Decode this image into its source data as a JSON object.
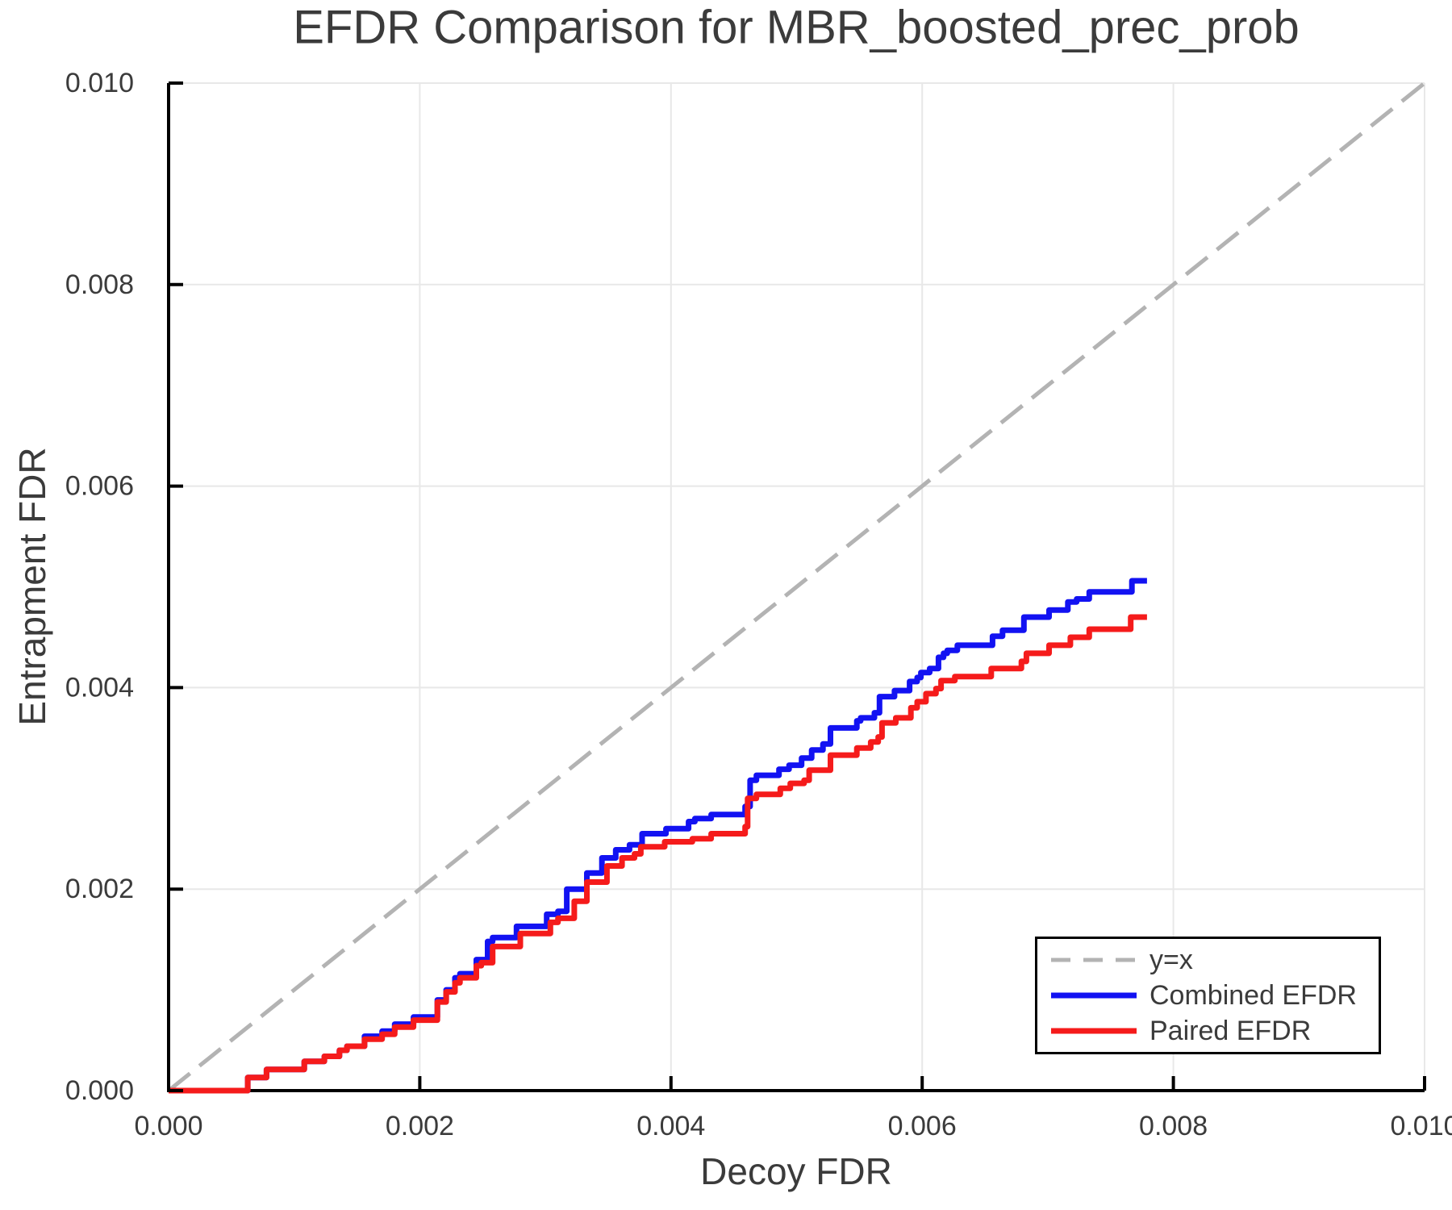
{
  "chart": {
    "title": "EFDR Comparison for MBR_boosted_prec_prob",
    "xlabel": "Decoy FDR",
    "ylabel": "Entrapment FDR"
  },
  "chart_data": {
    "type": "line",
    "title": "EFDR Comparison for MBR_boosted_prec_prob",
    "xlabel": "Decoy FDR",
    "ylabel": "Entrapment FDR",
    "xlim": [
      0.0,
      0.01
    ],
    "ylim": [
      0.0,
      0.01
    ],
    "grid": true,
    "legend_position": "lower right",
    "x_ticks": {
      "values": [
        0.0,
        0.002,
        0.004,
        0.006,
        0.008,
        0.01
      ],
      "labels": [
        "0.000",
        "0.002",
        "0.004",
        "0.006",
        "0.008",
        "0.010"
      ]
    },
    "y_ticks": {
      "values": [
        0.0,
        0.002,
        0.004,
        0.006,
        0.008,
        0.01
      ],
      "labels": [
        "0.000",
        "0.002",
        "0.004",
        "0.006",
        "0.008",
        "0.010"
      ]
    },
    "colors": {
      "grid": "#e8e8e8",
      "spine": "#000000",
      "text": "#3b3b3b",
      "reference": "#b3b3b3",
      "combined": "#1212f2",
      "paired": "#f51b1b"
    },
    "legend": [
      {
        "label": "y=x"
      },
      {
        "label": "Combined EFDR"
      },
      {
        "label": "Paired EFDR"
      }
    ],
    "series": [
      {
        "name": "y=x",
        "color": "#b3b3b3",
        "width": 5,
        "dash": "34 15",
        "step": false,
        "points": [
          [
            0.0,
            0.0
          ],
          [
            0.01,
            0.01
          ]
        ]
      },
      {
        "name": "Combined EFDR",
        "color": "#1212f2",
        "width": 7,
        "dash": null,
        "step": true,
        "points": [
          [
            0.0,
            0.0
          ],
          [
            0.00063,
            0.00013
          ],
          [
            0.00078,
            0.00021
          ],
          [
            0.00108,
            0.00029
          ],
          [
            0.00124,
            0.00034
          ],
          [
            0.00136,
            0.0004
          ],
          [
            0.00142,
            0.00044
          ],
          [
            0.00156,
            0.00054
          ],
          [
            0.0017,
            0.00059
          ],
          [
            0.0018,
            0.00066
          ],
          [
            0.00195,
            0.00073
          ],
          [
            0.00214,
            0.0009
          ],
          [
            0.00221,
            0.001
          ],
          [
            0.00228,
            0.00112
          ],
          [
            0.00232,
            0.00116
          ],
          [
            0.00245,
            0.0013
          ],
          [
            0.00254,
            0.00148
          ],
          [
            0.00258,
            0.00152
          ],
          [
            0.00277,
            0.00163
          ],
          [
            0.00301,
            0.00175
          ],
          [
            0.0031,
            0.00178
          ],
          [
            0.00317,
            0.002
          ],
          [
            0.00333,
            0.00216
          ],
          [
            0.00345,
            0.00231
          ],
          [
            0.00356,
            0.00239
          ],
          [
            0.00367,
            0.00244
          ],
          [
            0.00377,
            0.00255
          ],
          [
            0.00396,
            0.0026
          ],
          [
            0.00414,
            0.00267
          ],
          [
            0.00419,
            0.0027
          ],
          [
            0.00432,
            0.00274
          ],
          [
            0.00459,
            0.00282
          ],
          [
            0.00463,
            0.00308
          ],
          [
            0.00468,
            0.00313
          ],
          [
            0.00486,
            0.00319
          ],
          [
            0.00494,
            0.00323
          ],
          [
            0.00504,
            0.0033
          ],
          [
            0.00512,
            0.00338
          ],
          [
            0.00521,
            0.00344
          ],
          [
            0.00527,
            0.0036
          ],
          [
            0.00548,
            0.00367
          ],
          [
            0.00551,
            0.0037
          ],
          [
            0.00562,
            0.00375
          ],
          [
            0.00566,
            0.00391
          ],
          [
            0.00578,
            0.00397
          ],
          [
            0.0059,
            0.00406
          ],
          [
            0.00596,
            0.0041
          ],
          [
            0.00599,
            0.00415
          ],
          [
            0.00606,
            0.00419
          ],
          [
            0.00613,
            0.0043
          ],
          [
            0.00617,
            0.00434
          ],
          [
            0.0062,
            0.00437
          ],
          [
            0.00628,
            0.00442
          ],
          [
            0.00656,
            0.00451
          ],
          [
            0.00664,
            0.00457
          ],
          [
            0.00681,
            0.0047
          ],
          [
            0.00701,
            0.00477
          ],
          [
            0.00716,
            0.00485
          ],
          [
            0.00723,
            0.00488
          ],
          [
            0.00733,
            0.00495
          ],
          [
            0.00767,
            0.00506
          ],
          [
            0.00779,
            0.00506
          ]
        ]
      },
      {
        "name": "Paired EFDR",
        "color": "#f51b1b",
        "width": 7,
        "dash": null,
        "step": true,
        "points": [
          [
            0.0,
            0.0
          ],
          [
            0.00063,
            0.00013
          ],
          [
            0.00078,
            0.00021
          ],
          [
            0.00108,
            0.00029
          ],
          [
            0.00124,
            0.00034
          ],
          [
            0.00136,
            0.0004
          ],
          [
            0.00142,
            0.00044
          ],
          [
            0.00156,
            0.00051
          ],
          [
            0.0017,
            0.00056
          ],
          [
            0.0018,
            0.00063
          ],
          [
            0.00195,
            0.0007
          ],
          [
            0.00214,
            0.00088
          ],
          [
            0.00221,
            0.00098
          ],
          [
            0.00228,
            0.00107
          ],
          [
            0.00232,
            0.00112
          ],
          [
            0.00245,
            0.00124
          ],
          [
            0.00249,
            0.00127
          ],
          [
            0.00258,
            0.00143
          ],
          [
            0.0028,
            0.00156
          ],
          [
            0.00304,
            0.00167
          ],
          [
            0.0031,
            0.00171
          ],
          [
            0.00323,
            0.00188
          ],
          [
            0.00333,
            0.00207
          ],
          [
            0.00349,
            0.00223
          ],
          [
            0.00361,
            0.00231
          ],
          [
            0.00371,
            0.00235
          ],
          [
            0.00376,
            0.00242
          ],
          [
            0.00395,
            0.00247
          ],
          [
            0.00417,
            0.0025
          ],
          [
            0.00432,
            0.00255
          ],
          [
            0.00459,
            0.00262
          ],
          [
            0.00461,
            0.0029
          ],
          [
            0.00468,
            0.00294
          ],
          [
            0.00487,
            0.003
          ],
          [
            0.00495,
            0.00305
          ],
          [
            0.00506,
            0.00308
          ],
          [
            0.0051,
            0.00318
          ],
          [
            0.00527,
            0.00333
          ],
          [
            0.00548,
            0.0034
          ],
          [
            0.00559,
            0.00346
          ],
          [
            0.00565,
            0.00351
          ],
          [
            0.00568,
            0.00365
          ],
          [
            0.00579,
            0.0037
          ],
          [
            0.00591,
            0.0038
          ],
          [
            0.00596,
            0.00386
          ],
          [
            0.00603,
            0.00394
          ],
          [
            0.00611,
            0.00399
          ],
          [
            0.00615,
            0.00407
          ],
          [
            0.00626,
            0.00411
          ],
          [
            0.00655,
            0.00419
          ],
          [
            0.00679,
            0.00426
          ],
          [
            0.00683,
            0.00434
          ],
          [
            0.00701,
            0.00442
          ],
          [
            0.00718,
            0.0045
          ],
          [
            0.00733,
            0.00458
          ],
          [
            0.00766,
            0.0047
          ],
          [
            0.00779,
            0.0047
          ]
        ]
      }
    ]
  }
}
